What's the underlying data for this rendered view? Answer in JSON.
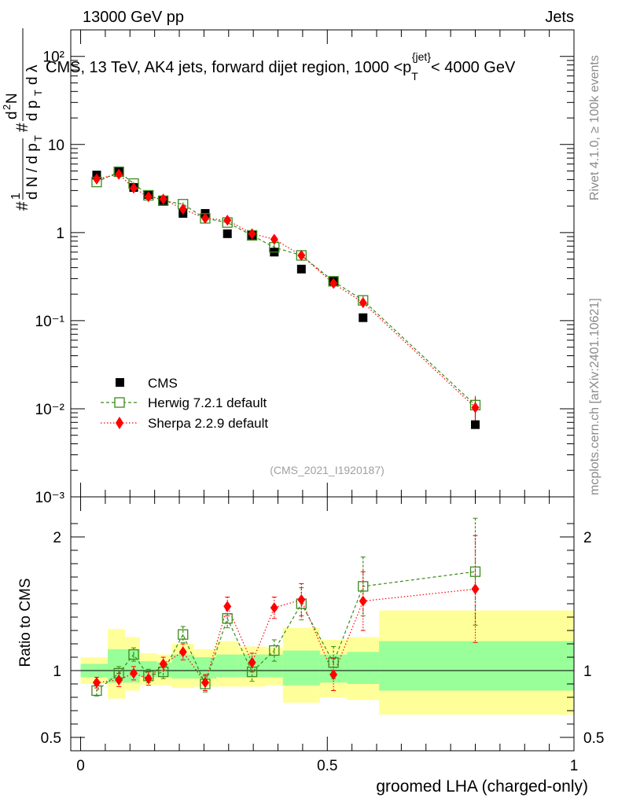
{
  "header": {
    "left": "13000 GeV pp",
    "right": "Jets"
  },
  "side_labels": {
    "rivet": "Rivet 4.1.0, ≥ 100k events",
    "mcplots": "mcplots.cern.ch [arXiv:2401.10621]"
  },
  "colors": {
    "cms": "#000000",
    "herwig": "#3a8a1a",
    "sherpa": "#ff0000",
    "band_inner": "#99ff99",
    "band_outer": "#ffff99"
  },
  "chart_data": [
    {
      "type": "scatter",
      "title": "CMS, 13 TeV, AK4 jets, forward dijet region, 1000 <p_T^{jet}< 4000 GeV",
      "ylabel": "1/dN/dp_T  d²N/dp_T dλ",
      "yscale": "log",
      "ylim": [
        0.001,
        200
      ],
      "xlim": [
        -0.02,
        1.0
      ],
      "ytick_labels": [
        "10⁻³",
        "10⁻²",
        "10⁻¹",
        "1",
        "10",
        "10²"
      ],
      "x": [
        0.0325,
        0.0775,
        0.1075,
        0.1375,
        0.1675,
        0.2075,
        0.2525,
        0.2975,
        0.3475,
        0.3925,
        0.4475,
        0.5125,
        0.5725,
        0.8
      ],
      "series": [
        {
          "name": "CMS",
          "marker": "square-filled",
          "values": [
            4.5,
            4.95,
            3.25,
            2.7,
            2.3,
            1.65,
            1.65,
            0.97,
            0.93,
            0.6,
            0.385,
            0.28,
            0.108,
            0.0066
          ]
        },
        {
          "name": "Herwig 7.2.1 default",
          "marker": "square-open",
          "line": "dashed",
          "values": [
            3.75,
            4.9,
            3.6,
            2.65,
            2.3,
            2.1,
            1.45,
            1.3,
            0.93,
            0.68,
            0.55,
            0.28,
            0.17,
            0.011
          ],
          "errors": [
            0.15,
            0.2,
            0.15,
            0.12,
            0.1,
            0.1,
            0.08,
            0.07,
            0.05,
            0.05,
            0.04,
            0.025,
            0.02,
            0.003
          ]
        },
        {
          "name": "Sherpa 2.2.9 default",
          "marker": "diamond",
          "line": "dotted",
          "values": [
            4.05,
            4.6,
            3.2,
            2.55,
            2.4,
            1.85,
            1.45,
            1.38,
            0.97,
            0.84,
            0.55,
            0.265,
            0.16,
            0.0103
          ],
          "errors": [
            0.15,
            0.2,
            0.15,
            0.12,
            0.1,
            0.1,
            0.08,
            0.07,
            0.05,
            0.05,
            0.04,
            0.025,
            0.02,
            0.003
          ]
        }
      ],
      "reference": "(CMS_2021_I1920187)"
    },
    {
      "type": "ratio",
      "ylabel": "Ratio to CMS",
      "ylim": [
        0.4,
        2.3
      ],
      "ytick_labels": [
        "0.5",
        "1",
        "2"
      ],
      "ytick_values": [
        0.5,
        1,
        2
      ],
      "xlabel": "groomed LHA (charged-only)",
      "xtick_labels": [
        "0",
        "0.5",
        "1"
      ],
      "xtick_values": [
        0,
        0.5,
        1
      ],
      "bins": [
        {
          "lo": 0.0,
          "hi": 0.055,
          "inner": [
            0.95,
            1.05
          ],
          "outer": [
            0.9,
            1.1
          ]
        },
        {
          "lo": 0.055,
          "hi": 0.09,
          "inner": [
            0.91,
            1.16
          ],
          "outer": [
            0.79,
            1.31
          ]
        },
        {
          "lo": 0.09,
          "hi": 0.12,
          "inner": [
            0.91,
            1.16
          ],
          "outer": [
            0.85,
            1.25
          ]
        },
        {
          "lo": 0.12,
          "hi": 0.155,
          "inner": [
            0.95,
            1.07
          ],
          "outer": [
            0.89,
            1.13
          ]
        },
        {
          "lo": 0.155,
          "hi": 0.185,
          "inner": [
            0.95,
            1.06
          ],
          "outer": [
            0.89,
            1.12
          ]
        },
        {
          "lo": 0.185,
          "hi": 0.23,
          "inner": [
            0.94,
            1.12
          ],
          "outer": [
            0.87,
            1.2
          ]
        },
        {
          "lo": 0.23,
          "hi": 0.275,
          "inner": [
            0.94,
            1.1
          ],
          "outer": [
            0.88,
            1.16
          ]
        },
        {
          "lo": 0.275,
          "hi": 0.32,
          "inner": [
            0.95,
            1.12
          ],
          "outer": [
            0.88,
            1.22
          ]
        },
        {
          "lo": 0.32,
          "hi": 0.375,
          "inner": [
            0.95,
            1.12
          ],
          "outer": [
            0.88,
            1.18
          ]
        },
        {
          "lo": 0.375,
          "hi": 0.41,
          "inner": [
            0.95,
            1.12
          ],
          "outer": [
            0.89,
            1.17
          ]
        },
        {
          "lo": 0.41,
          "hi": 0.485,
          "inner": [
            0.89,
            1.15
          ],
          "outer": [
            0.76,
            1.32
          ]
        },
        {
          "lo": 0.485,
          "hi": 0.54,
          "inner": [
            0.91,
            1.12
          ],
          "outer": [
            0.8,
            1.23
          ]
        },
        {
          "lo": 0.54,
          "hi": 0.605,
          "inner": [
            0.9,
            1.14
          ],
          "outer": [
            0.78,
            1.25
          ]
        },
        {
          "lo": 0.605,
          "hi": 1.0,
          "inner": [
            0.85,
            1.22
          ],
          "outer": [
            0.67,
            1.45
          ]
        }
      ],
      "series": [
        {
          "name": "Herwig 7.2.1 default",
          "values": [
            0.85,
            0.98,
            1.12,
            0.96,
            0.99,
            1.27,
            0.9,
            1.39,
            0.99,
            1.15,
            1.5,
            1.06,
            1.63,
            1.74
          ],
          "errors": [
            0.04,
            0.05,
            0.05,
            0.05,
            0.05,
            0.06,
            0.06,
            0.07,
            0.07,
            0.08,
            0.12,
            0.12,
            0.22,
            0.4
          ]
        },
        {
          "name": "Sherpa 2.2.9 default",
          "values": [
            0.91,
            0.93,
            0.98,
            0.94,
            1.05,
            1.14,
            0.91,
            1.48,
            1.06,
            1.47,
            1.53,
            0.97,
            1.52,
            1.61
          ],
          "errors": [
            0.04,
            0.05,
            0.05,
            0.05,
            0.05,
            0.06,
            0.06,
            0.07,
            0.07,
            0.08,
            0.12,
            0.12,
            0.22,
            0.4
          ]
        }
      ]
    }
  ]
}
